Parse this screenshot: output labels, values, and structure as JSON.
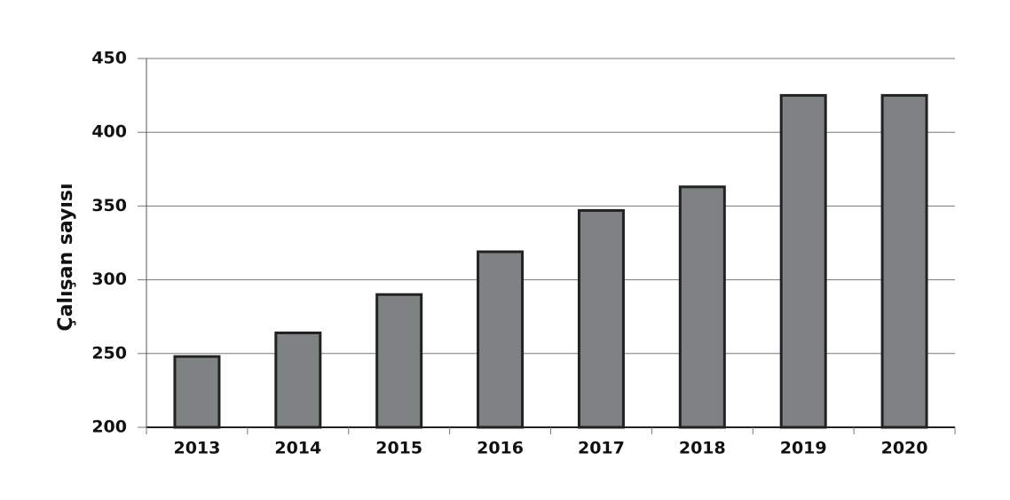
{
  "chart_data": {
    "type": "bar",
    "y_label": "Çalışan sayısı",
    "categories": [
      "2013",
      "2014",
      "2015",
      "2016",
      "2017",
      "2018",
      "2019",
      "2020"
    ],
    "values": [
      248,
      264,
      290,
      319,
      347,
      363,
      425,
      425
    ],
    "color": "#7e8282",
    "ylim": [
      200,
      450
    ],
    "yticks": [
      200,
      250,
      300,
      350,
      400,
      450
    ],
    "grid": true
  }
}
